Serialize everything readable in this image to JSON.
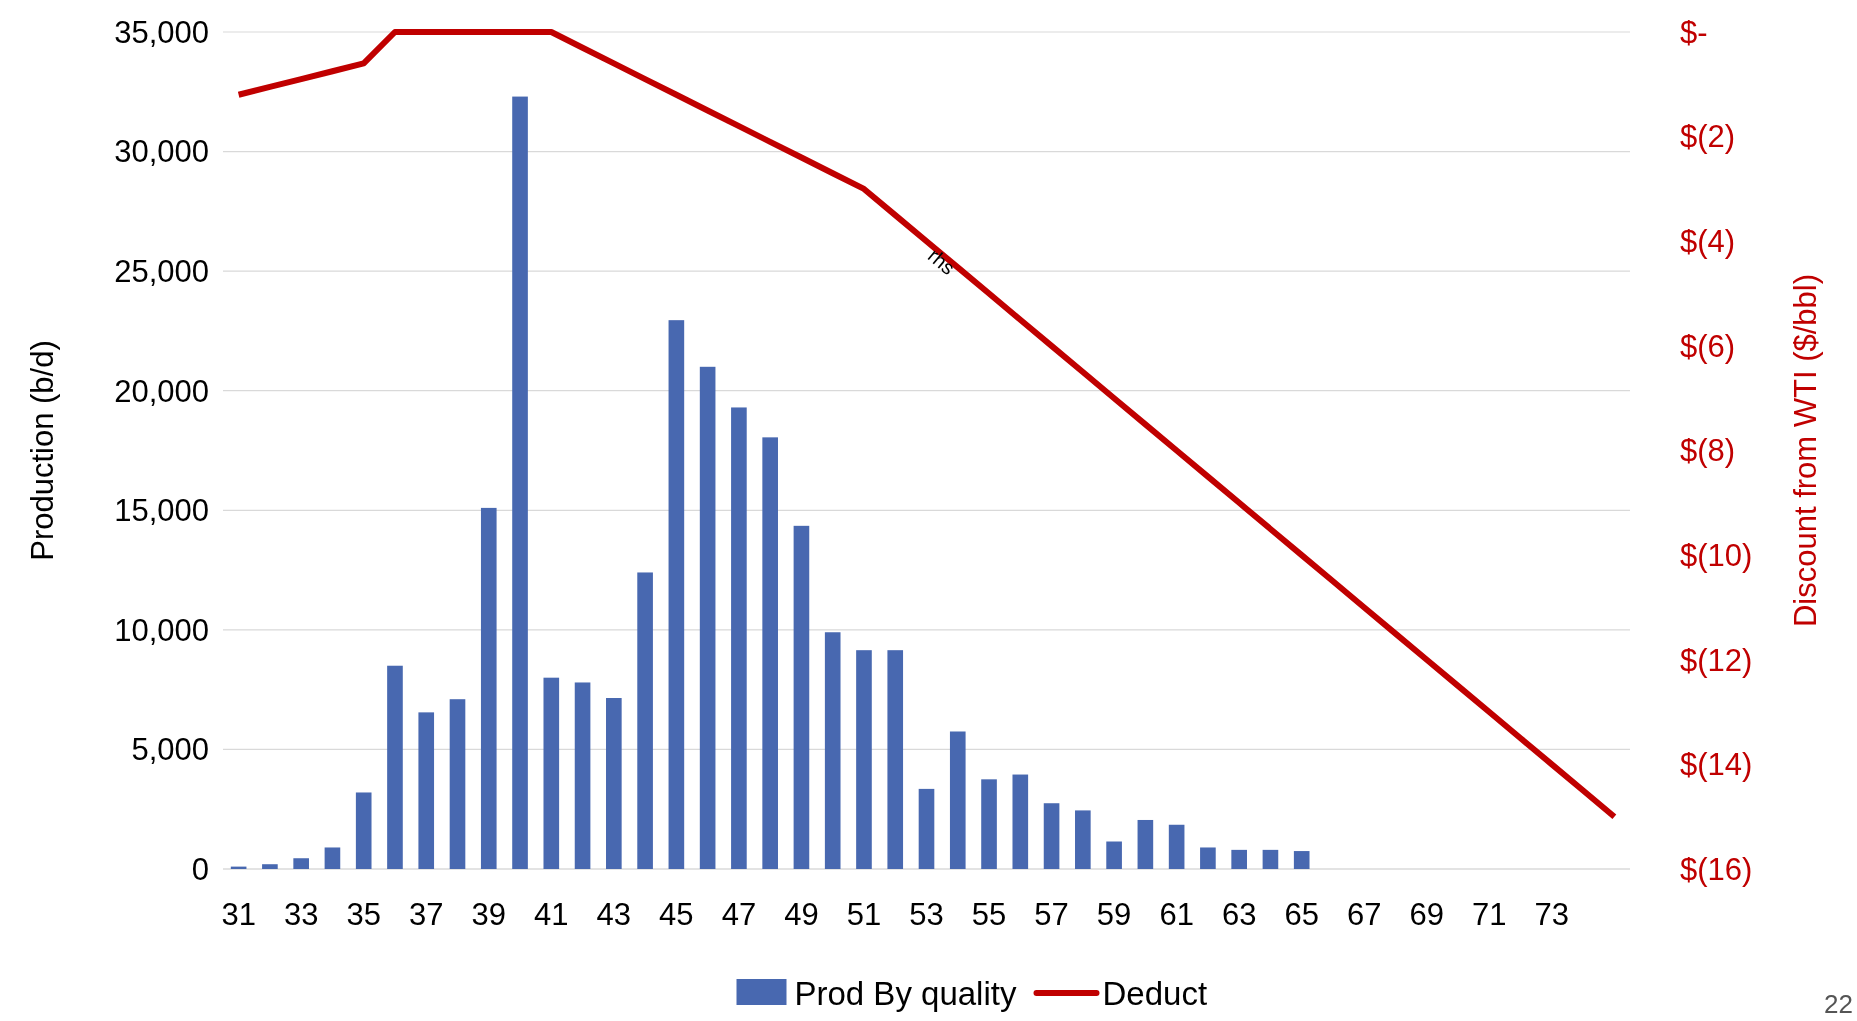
{
  "chart_data": {
    "type": "bar",
    "categories": [
      "31",
      null,
      "33",
      null,
      "35",
      null,
      "37",
      null,
      "39",
      null,
      "41",
      null,
      "43",
      null,
      "45",
      null,
      "47",
      null,
      "49",
      null,
      "51",
      null,
      "53",
      null,
      "55",
      null,
      "57",
      null,
      "59",
      null,
      "61",
      null,
      "63",
      null,
      "65",
      null,
      "67",
      null,
      "69",
      null,
      "71",
      null,
      "73",
      null,
      null
    ],
    "series": [
      {
        "name": "Prod By quality",
        "color": "#4868b0",
        "values": [
          100,
          200,
          450,
          900,
          3200,
          8500,
          6550,
          7100,
          15100,
          32300,
          8000,
          7800,
          7150,
          12400,
          22950,
          21000,
          19300,
          18050,
          14350,
          9900,
          9150,
          9150,
          3350,
          5750,
          3750,
          3950,
          2750,
          2450,
          1150,
          2050,
          1850,
          900,
          800,
          800,
          750,
          null,
          null,
          null,
          null,
          null,
          null,
          null,
          null,
          null,
          null
        ]
      },
      {
        "name": "Deduct",
        "type": "line",
        "axis": "y2",
        "color": "#c00000",
        "values": [
          -1.2,
          -1.05,
          -0.9,
          -0.75,
          -0.6,
          0,
          0,
          0,
          0,
          0,
          0,
          -0.3,
          -0.6,
          -0.9,
          -1.2,
          -1.5,
          -1.8,
          -2.1,
          -2.4,
          -2.7,
          -3.0,
          -3.5,
          -4.0,
          -4.5,
          -5.0,
          -5.5,
          -6.0,
          -6.5,
          -7.0,
          -7.5,
          -8.0,
          -8.5,
          -9.0,
          -9.5,
          -10.0,
          -10.5,
          -11.0,
          -11.5,
          -12.0,
          -12.5,
          -13.0,
          -13.5,
          -14.0,
          -14.5,
          -15.0
        ]
      }
    ],
    "ylabel": "Production (b/d)",
    "y2label": "Discount from WTI ($/bbl)",
    "ylim": [
      0,
      35000
    ],
    "yticks": [
      {
        "value": 0,
        "label": "0"
      },
      {
        "value": 5000,
        "label": "5,000"
      },
      {
        "value": 10000,
        "label": "10,000"
      },
      {
        "value": 15000,
        "label": "15,000"
      },
      {
        "value": 20000,
        "label": "20,000"
      },
      {
        "value": 25000,
        "label": "25,000"
      },
      {
        "value": 30000,
        "label": "30,000"
      },
      {
        "value": 35000,
        "label": "35,000"
      }
    ],
    "y2lim": [
      -16,
      0
    ],
    "y2ticks": [
      {
        "value": 0,
        "label": "$-"
      },
      {
        "value": -2,
        "label": "$(2)"
      },
      {
        "value": -4,
        "label": "$(4)"
      },
      {
        "value": -6,
        "label": "$(6)"
      },
      {
        "value": -8,
        "label": "$(8)"
      },
      {
        "value": -10,
        "label": "$(10)"
      },
      {
        "value": -12,
        "label": "$(12)"
      },
      {
        "value": -14,
        "label": "$(14)"
      },
      {
        "value": -16,
        "label": "$(16)"
      }
    ],
    "grid": "y",
    "legend": "bottom",
    "annotations": [
      "rhs",
      "22"
    ]
  }
}
